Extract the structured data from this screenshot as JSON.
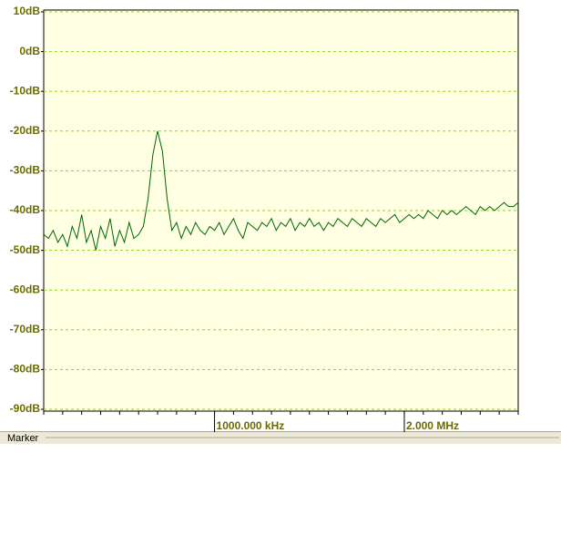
{
  "chart_data": {
    "type": "line",
    "color": "#006600",
    "grid": true,
    "xlim": [
      100,
      2600
    ],
    "ylim": [
      -90,
      10
    ],
    "yticks": [
      {
        "value": 10,
        "label": "10dB"
      },
      {
        "value": 0,
        "label": "0dB"
      },
      {
        "value": -10,
        "label": "-10dB"
      },
      {
        "value": -20,
        "label": "-20dB"
      },
      {
        "value": -30,
        "label": "-30dB"
      },
      {
        "value": -40,
        "label": "-40dB"
      },
      {
        "value": -50,
        "label": "-50dB"
      },
      {
        "value": -60,
        "label": "-60dB"
      },
      {
        "value": -70,
        "label": "-70dB"
      },
      {
        "value": -80,
        "label": "-80dB"
      },
      {
        "value": -90,
        "label": "-90dB"
      }
    ],
    "xticks": [
      {
        "value": 1000,
        "label": "1000.000 kHz"
      },
      {
        "value": 2000,
        "label": "2.000 MHz"
      }
    ],
    "minor_xticks": [
      100,
      200,
      300,
      400,
      500,
      600,
      700,
      800,
      900,
      1000,
      1100,
      1200,
      1300,
      1400,
      1500,
      1600,
      1700,
      1800,
      1900,
      2000,
      2100,
      2200,
      2300,
      2400,
      2500,
      2600
    ],
    "x": [
      100,
      125,
      150,
      175,
      200,
      225,
      250,
      275,
      300,
      325,
      350,
      375,
      400,
      425,
      450,
      475,
      500,
      525,
      550,
      575,
      600,
      625,
      650,
      675,
      700,
      725,
      750,
      775,
      800,
      825,
      850,
      875,
      900,
      925,
      950,
      975,
      1000,
      1025,
      1050,
      1075,
      1100,
      1125,
      1150,
      1175,
      1200,
      1225,
      1250,
      1275,
      1300,
      1325,
      1350,
      1375,
      1400,
      1425,
      1450,
      1475,
      1500,
      1525,
      1550,
      1575,
      1600,
      1625,
      1650,
      1675,
      1700,
      1725,
      1750,
      1775,
      1800,
      1825,
      1850,
      1875,
      1900,
      1925,
      1950,
      1975,
      2000,
      2025,
      2050,
      2075,
      2100,
      2125,
      2150,
      2175,
      2200,
      2225,
      2250,
      2275,
      2300,
      2325,
      2350,
      2375,
      2400,
      2425,
      2450,
      2475,
      2500,
      2525,
      2550,
      2575,
      2600
    ],
    "values": [
      -46,
      -47,
      -45,
      -48,
      -46,
      -49,
      -44,
      -47,
      -41,
      -48,
      -45,
      -50,
      -44,
      -47,
      -42,
      -49,
      -45,
      -48,
      -43,
      -47,
      -46,
      -44,
      -37,
      -26,
      -20,
      -25,
      -37,
      -45,
      -43,
      -47,
      -44,
      -46,
      -43,
      -45,
      -46,
      -44,
      -45,
      -43,
      -46,
      -44,
      -42,
      -45,
      -47,
      -43,
      -44,
      -45,
      -43,
      -44,
      -42,
      -45,
      -43,
      -44,
      -42,
      -45,
      -43,
      -44,
      -42,
      -44,
      -43,
      -45,
      -43,
      -44,
      -42,
      -43,
      -44,
      -42,
      -43,
      -44,
      -42,
      -43,
      -44,
      -42,
      -43,
      -42,
      -41,
      -43,
      -42,
      -41,
      -42,
      -41,
      -42,
      -40,
      -41,
      -42,
      -40,
      -41,
      -40,
      -41,
      -40,
      -39,
      -40,
      -41,
      -39,
      -40,
      -39,
      -40,
      -39,
      -38,
      -39,
      -39,
      -38
    ]
  },
  "panel": {
    "label": "Marker"
  }
}
